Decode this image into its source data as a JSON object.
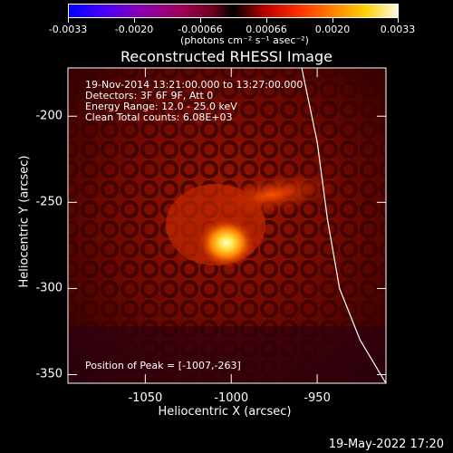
{
  "colorbar": {
    "tick_labels": [
      "-0.0033",
      "-0.0020",
      "-0.00066",
      "0.00066",
      "0.0020",
      "0.0033"
    ],
    "units": "(photons cm⁻² s⁻¹ asec⁻²)"
  },
  "title": "Reconstructed RHESSI Image",
  "annotations": {
    "time_range": "19-Nov-2014 13:21:00.000 to 13:27:00.000",
    "detectors": "Detectors: 3F 6F 9F, Att 0",
    "energy_range": "Energy Range: 12.0 - 25.0 keV",
    "clean": "Clean    Total counts: 6.08E+03",
    "peak": "Position of Peak = [-1007,-263]"
  },
  "footer_timestamp": "19-May-2022 17:20",
  "chart_data": {
    "type": "heatmap",
    "title": "Reconstructed RHESSI Image",
    "xlabel": "Heliocentric X (arcsec)",
    "ylabel": "Heliocentric Y (arcsec)",
    "xlim": [
      -1095,
      -910
    ],
    "ylim": [
      -355,
      -172
    ],
    "x_ticks": [
      "-1050",
      "-1000",
      "-950"
    ],
    "y_ticks": [
      "-200",
      "-250",
      "-300",
      "-350"
    ],
    "x_tick_values": [
      -1050,
      -1000,
      -950
    ],
    "y_tick_values": [
      -200,
      -250,
      -300,
      -350
    ],
    "peak_position": [
      -1007,
      -263
    ],
    "colorbar_range": [
      -0.0033,
      0.0033
    ],
    "colormap": "heat (blue-purple-red-orange-yellow-white)",
    "limb_curve": [
      [
        -959,
        -172
      ],
      [
        -950,
        -215
      ],
      [
        -944,
        -260
      ],
      [
        -937,
        -300
      ],
      [
        -925,
        -330
      ],
      [
        -910,
        -355
      ]
    ]
  }
}
